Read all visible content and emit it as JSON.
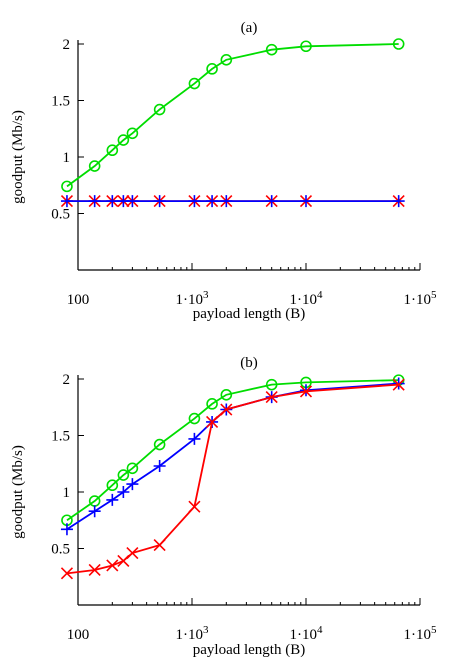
{
  "chart_data": [
    {
      "type": "line",
      "title": "(a)",
      "xlabel": "payload length (B)",
      "ylabel": "goodput (Mb/s)",
      "xscale": "log",
      "xlim": [
        100,
        100000
      ],
      "ylim": [
        0,
        2
      ],
      "xticks": [
        100,
        1000,
        10000,
        100000
      ],
      "xtick_labels": [
        "100",
        "1·10",
        "1·10",
        "1·10"
      ],
      "xtick_exponents": [
        "",
        "3",
        "4",
        "5"
      ],
      "yticks": [
        0.5,
        1,
        1.5,
        2
      ],
      "ytick_labels": [
        "0.5",
        "1",
        "1.5",
        "2"
      ],
      "grid": false,
      "series": [
        {
          "color": "#00dd00",
          "marker": "circle",
          "x": [
            80,
            140,
            200,
            250,
            300,
            520,
            1050,
            1500,
            2000,
            5000,
            10000,
            65000
          ],
          "y": [
            0.74,
            0.92,
            1.06,
            1.15,
            1.21,
            1.42,
            1.65,
            1.78,
            1.86,
            1.95,
            1.98,
            2.0
          ]
        },
        {
          "color": "#ff0000",
          "marker": "x",
          "x": [
            80,
            140,
            200,
            250,
            300,
            520,
            1050,
            1500,
            2000,
            5000,
            10000,
            65000
          ],
          "y": [
            0.61,
            0.61,
            0.61,
            0.61,
            0.61,
            0.61,
            0.61,
            0.61,
            0.61,
            0.61,
            0.61,
            0.61
          ]
        },
        {
          "color": "#0000ff",
          "marker": "plus",
          "x": [
            80,
            140,
            200,
            250,
            300,
            520,
            1050,
            1500,
            2000,
            5000,
            10000,
            65000
          ],
          "y": [
            0.61,
            0.61,
            0.61,
            0.61,
            0.61,
            0.61,
            0.61,
            0.61,
            0.61,
            0.61,
            0.61,
            0.61
          ]
        }
      ]
    },
    {
      "type": "line",
      "title": "(b)",
      "xlabel": "payload length (B)",
      "ylabel": "goodput (Mb/s)",
      "xscale": "log",
      "xlim": [
        100,
        100000
      ],
      "ylim": [
        0,
        2
      ],
      "xticks": [
        100,
        1000,
        10000,
        100000
      ],
      "xtick_labels": [
        "100",
        "1·10",
        "1·10",
        "1·10"
      ],
      "xtick_exponents": [
        "",
        "3",
        "4",
        "5"
      ],
      "yticks": [
        0.5,
        1,
        1.5,
        2
      ],
      "ytick_labels": [
        "0.5",
        "1",
        "1.5",
        "2"
      ],
      "grid": false,
      "series": [
        {
          "color": "#00dd00",
          "marker": "circle",
          "x": [
            80,
            140,
            200,
            250,
            300,
            520,
            1050,
            1500,
            2000,
            5000,
            10000,
            65000
          ],
          "y": [
            0.75,
            0.92,
            1.06,
            1.15,
            1.21,
            1.42,
            1.65,
            1.78,
            1.86,
            1.95,
            1.97,
            1.99
          ]
        },
        {
          "color": "#0000ff",
          "marker": "plus",
          "x": [
            80,
            140,
            200,
            250,
            300,
            520,
            1050,
            1500,
            2000,
            5000,
            10000,
            65000
          ],
          "y": [
            0.67,
            0.83,
            0.93,
            1.0,
            1.07,
            1.23,
            1.47,
            1.62,
            1.73,
            1.84,
            1.9,
            1.96
          ]
        },
        {
          "color": "#ff0000",
          "marker": "x",
          "x": [
            80,
            140,
            200,
            250,
            300,
            520,
            1050,
            1500,
            2000,
            5000,
            10000,
            65000
          ],
          "y": [
            0.28,
            0.31,
            0.35,
            0.39,
            0.46,
            0.53,
            0.87,
            1.62,
            1.73,
            1.84,
            1.89,
            1.95
          ]
        }
      ]
    }
  ]
}
